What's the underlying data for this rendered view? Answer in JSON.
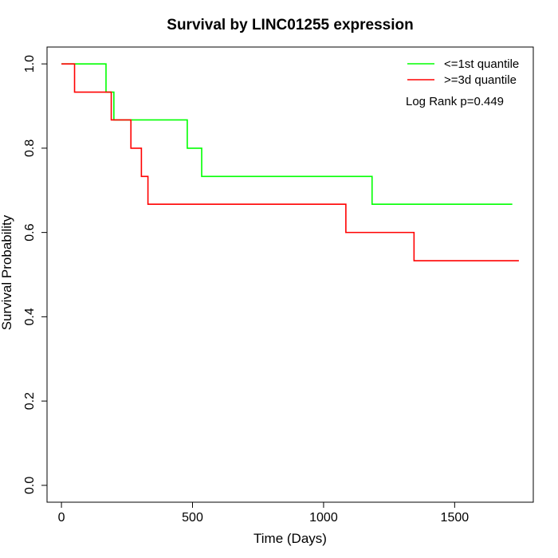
{
  "chart_data": {
    "type": "line",
    "title": "Survival by LINC01255 expression",
    "xlabel": "Time (Days)",
    "ylabel": "Survival Probability",
    "xlim": [
      -55,
      1800
    ],
    "ylim": [
      -0.04,
      1.04
    ],
    "x_ticks": [
      0,
      500,
      1000,
      1500
    ],
    "y_ticks": [
      0.0,
      0.2,
      0.4,
      0.6,
      0.8,
      1.0
    ],
    "y_tick_labels": [
      "0.0",
      "0.2",
      "0.4",
      "0.6",
      "0.8",
      "1.0"
    ],
    "grid": false,
    "legend_position": "top-right",
    "annotation": "Log Rank p=0.449",
    "series": [
      {
        "name": "<=1st quantile",
        "color": "#00ff00",
        "steps": [
          [
            0,
            1.0
          ],
          [
            170,
            0.933
          ],
          [
            200,
            0.867
          ],
          [
            480,
            0.8
          ],
          [
            535,
            0.733
          ],
          [
            1185,
            0.667
          ],
          [
            1720,
            0.667
          ]
        ]
      },
      {
        "name": ">=3d quantile",
        "color": "#ff0000",
        "steps": [
          [
            0,
            1.0
          ],
          [
            50,
            0.933
          ],
          [
            190,
            0.867
          ],
          [
            265,
            0.8
          ],
          [
            305,
            0.733
          ],
          [
            330,
            0.667
          ],
          [
            1085,
            0.6
          ],
          [
            1345,
            0.533
          ],
          [
            1745,
            0.533
          ]
        ]
      }
    ]
  }
}
